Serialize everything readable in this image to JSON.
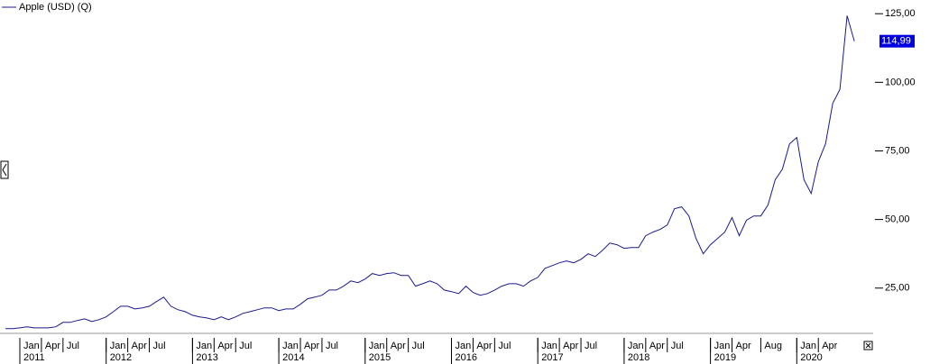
{
  "chart_data": {
    "type": "line",
    "legend": "Apple (USD) (Q)",
    "grid": false,
    "x": [
      "2010-11",
      "2010-12",
      "2011-01",
      "2011-02",
      "2011-03",
      "2011-04",
      "2011-05",
      "2011-06",
      "2011-07",
      "2011-08",
      "2011-09",
      "2011-10",
      "2011-11",
      "2011-12",
      "2012-01",
      "2012-02",
      "2012-03",
      "2012-04",
      "2012-05",
      "2012-06",
      "2012-07",
      "2012-08",
      "2012-09",
      "2012-10",
      "2012-11",
      "2012-12",
      "2013-01",
      "2013-02",
      "2013-03",
      "2013-04",
      "2013-05",
      "2013-06",
      "2013-07",
      "2013-08",
      "2013-09",
      "2013-10",
      "2013-11",
      "2013-12",
      "2014-01",
      "2014-02",
      "2014-03",
      "2014-04",
      "2014-05",
      "2014-06",
      "2014-07",
      "2014-08",
      "2014-09",
      "2014-10",
      "2014-11",
      "2014-12",
      "2015-01",
      "2015-02",
      "2015-03",
      "2015-04",
      "2015-05",
      "2015-06",
      "2015-07",
      "2015-08",
      "2015-09",
      "2015-10",
      "2015-11",
      "2015-12",
      "2016-01",
      "2016-02",
      "2016-03",
      "2016-04",
      "2016-05",
      "2016-06",
      "2016-07",
      "2016-08",
      "2016-09",
      "2016-10",
      "2016-11",
      "2016-12",
      "2017-01",
      "2017-02",
      "2017-03",
      "2017-04",
      "2017-05",
      "2017-06",
      "2017-07",
      "2017-08",
      "2017-09",
      "2017-10",
      "2017-11",
      "2017-12",
      "2018-01",
      "2018-02",
      "2018-03",
      "2018-04",
      "2018-05",
      "2018-06",
      "2018-07",
      "2018-08",
      "2018-09",
      "2018-10",
      "2018-11",
      "2018-12",
      "2019-01",
      "2019-02",
      "2019-03",
      "2019-04",
      "2019-05",
      "2019-06",
      "2019-07",
      "2019-08",
      "2019-09",
      "2019-10",
      "2019-11",
      "2019-12",
      "2020-01",
      "2020-02",
      "2020-03",
      "2020-04",
      "2020-05",
      "2020-06",
      "2020-07",
      "2020-08",
      "2020-09"
    ],
    "series": [
      {
        "name": "Apple (USD) (Q)",
        "color": "#1a1a8c",
        "values": [
          10.2,
          10.2,
          10.5,
          10.9,
          10.5,
          10.5,
          10.5,
          10.9,
          12.5,
          12.5,
          13.2,
          13.8,
          12.8,
          13.5,
          14.5,
          16.4,
          18.4,
          18.4,
          17.4,
          17.8,
          18.4,
          20.1,
          21.7,
          18.4,
          17.1,
          16.4,
          15.1,
          14.5,
          14.1,
          13.5,
          14.5,
          13.5,
          14.5,
          15.8,
          16.4,
          17.1,
          17.8,
          17.8,
          16.8,
          17.4,
          17.4,
          19.1,
          21.1,
          21.7,
          22.4,
          24.3,
          24.3,
          25.7,
          27.6,
          27.0,
          28.3,
          30.3,
          29.6,
          30.3,
          30.6,
          29.6,
          29.6,
          25.7,
          26.6,
          27.6,
          26.6,
          24.3,
          23.7,
          23.0,
          25.7,
          23.4,
          22.4,
          23.0,
          24.3,
          25.7,
          26.6,
          26.6,
          25.7,
          27.6,
          28.9,
          32.2,
          33.2,
          34.2,
          34.9,
          34.2,
          35.5,
          37.5,
          36.5,
          38.8,
          41.4,
          40.8,
          39.5,
          39.8,
          39.8,
          44.1,
          45.4,
          46.4,
          48.0,
          53.9,
          54.6,
          51.3,
          43.1,
          37.5,
          40.8,
          43.1,
          45.4,
          50.7,
          44.1,
          49.7,
          51.3,
          51.3,
          55.3,
          64.5,
          68.4,
          77.6,
          79.9,
          64.5,
          59.5,
          71.1,
          77.6,
          92.4,
          97.4,
          124.3,
          114.99
        ]
      }
    ],
    "last_label": "114,99",
    "ylim": [
      8.5,
      130
    ],
    "yticks": [
      {
        "value": 25,
        "label": "25,00"
      },
      {
        "value": 50,
        "label": "50,00"
      },
      {
        "value": 75,
        "label": "75,00"
      },
      {
        "value": 100,
        "label": "100,00"
      },
      {
        "value": 125,
        "label": "125,00"
      }
    ],
    "xticks": [
      {
        "value": "2011-01",
        "label": "Jan"
      },
      {
        "value": "2011-04",
        "label": "Apr"
      },
      {
        "value": "2011-07",
        "label": "Jul"
      },
      {
        "value": "2012-01",
        "label": "Jan"
      },
      {
        "value": "2012-04",
        "label": "Apr"
      },
      {
        "value": "2012-07",
        "label": "Jul"
      },
      {
        "value": "2013-01",
        "label": "Jan"
      },
      {
        "value": "2013-04",
        "label": "Apr"
      },
      {
        "value": "2013-07",
        "label": "Jul"
      },
      {
        "value": "2014-01",
        "label": "Jan"
      },
      {
        "value": "2014-04",
        "label": "Apr"
      },
      {
        "value": "2014-07",
        "label": "Jul"
      },
      {
        "value": "2015-01",
        "label": "Jan"
      },
      {
        "value": "2015-04",
        "label": "Apr"
      },
      {
        "value": "2015-07",
        "label": "Jul"
      },
      {
        "value": "2016-01",
        "label": "Jan"
      },
      {
        "value": "2016-04",
        "label": "Apr"
      },
      {
        "value": "2016-07",
        "label": "Jul"
      },
      {
        "value": "2017-01",
        "label": "Jan"
      },
      {
        "value": "2017-04",
        "label": "Apr"
      },
      {
        "value": "2017-07",
        "label": "Jul"
      },
      {
        "value": "2018-01",
        "label": "Jan"
      },
      {
        "value": "2018-04",
        "label": "Apr"
      },
      {
        "value": "2018-07",
        "label": "Jul"
      },
      {
        "value": "2019-01",
        "label": "Jan"
      },
      {
        "value": "2019-04",
        "label": "Apr"
      },
      {
        "value": "2019-08",
        "label": "Aug"
      },
      {
        "value": "2020-01",
        "label": "Jan"
      },
      {
        "value": "2020-04",
        "label": "Apr"
      }
    ],
    "year_labels": [
      {
        "value": "2011-01",
        "label": "2011"
      },
      {
        "value": "2012-01",
        "label": "2012"
      },
      {
        "value": "2013-01",
        "label": "2013"
      },
      {
        "value": "2014-01",
        "label": "2014"
      },
      {
        "value": "2015-01",
        "label": "2015"
      },
      {
        "value": "2016-01",
        "label": "2016"
      },
      {
        "value": "2017-01",
        "label": "2017"
      },
      {
        "value": "2018-01",
        "label": "2018"
      },
      {
        "value": "2019-01",
        "label": "2019"
      },
      {
        "value": "2020-01",
        "label": "2020"
      }
    ]
  }
}
